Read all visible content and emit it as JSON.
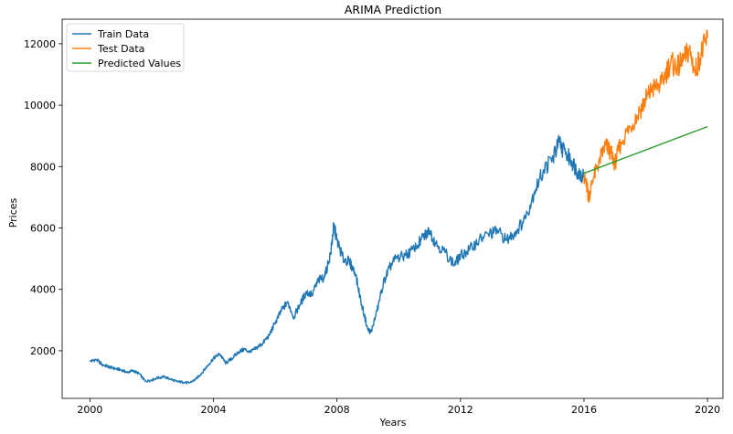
{
  "chart_data": {
    "type": "line",
    "title": "ARIMA Prediction",
    "xlabel": "Years",
    "ylabel": "Prices",
    "xlim": [
      1999.1,
      2020.5
    ],
    "ylim": [
      450,
      12800
    ],
    "x_ticks": [
      2000,
      2004,
      2008,
      2012,
      2016,
      2020
    ],
    "x_tick_labels": [
      "2000",
      "2004",
      "2008",
      "2012",
      "2016",
      "2020"
    ],
    "y_ticks": [
      2000,
      4000,
      6000,
      8000,
      10000,
      12000
    ],
    "y_tick_labels": [
      "2000",
      "4000",
      "6000",
      "8000",
      "10000",
      "12000"
    ],
    "grid": false,
    "legend_position": "upper-left",
    "colors": {
      "train": "#1f77b4",
      "test": "#ff7f0e",
      "predicted": "#2ca02c"
    },
    "series": [
      {
        "name": "Train Data",
        "key": "train",
        "points": [
          [
            2000.0,
            1650
          ],
          [
            2000.2,
            1720
          ],
          [
            2000.4,
            1550
          ],
          [
            2000.6,
            1480
          ],
          [
            2000.8,
            1420
          ],
          [
            2001.0,
            1380
          ],
          [
            2001.2,
            1300
          ],
          [
            2001.4,
            1350
          ],
          [
            2001.6,
            1250
          ],
          [
            2001.8,
            1000
          ],
          [
            2002.0,
            1050
          ],
          [
            2002.2,
            1120
          ],
          [
            2002.4,
            1150
          ],
          [
            2002.6,
            1080
          ],
          [
            2002.8,
            1000
          ],
          [
            2003.0,
            980
          ],
          [
            2003.2,
            950
          ],
          [
            2003.4,
            1050
          ],
          [
            2003.6,
            1250
          ],
          [
            2003.8,
            1500
          ],
          [
            2004.0,
            1750
          ],
          [
            2004.2,
            1900
          ],
          [
            2004.4,
            1600
          ],
          [
            2004.6,
            1750
          ],
          [
            2004.8,
            1950
          ],
          [
            2005.0,
            2050
          ],
          [
            2005.2,
            1950
          ],
          [
            2005.4,
            2100
          ],
          [
            2005.6,
            2250
          ],
          [
            2005.8,
            2500
          ],
          [
            2006.0,
            2900
          ],
          [
            2006.2,
            3300
          ],
          [
            2006.4,
            3600
          ],
          [
            2006.6,
            3100
          ],
          [
            2006.8,
            3500
          ],
          [
            2007.0,
            3900
          ],
          [
            2007.2,
            3850
          ],
          [
            2007.4,
            4300
          ],
          [
            2007.6,
            4400
          ],
          [
            2007.8,
            5200
          ],
          [
            2007.9,
            6100
          ],
          [
            2008.0,
            5600
          ],
          [
            2008.2,
            5000
          ],
          [
            2008.4,
            4900
          ],
          [
            2008.6,
            4500
          ],
          [
            2008.8,
            3500
          ],
          [
            2009.0,
            2700
          ],
          [
            2009.1,
            2600
          ],
          [
            2009.3,
            3300
          ],
          [
            2009.5,
            4200
          ],
          [
            2009.7,
            4700
          ],
          [
            2009.9,
            5000
          ],
          [
            2010.2,
            5100
          ],
          [
            2010.5,
            5300
          ],
          [
            2010.8,
            5700
          ],
          [
            2011.0,
            5900
          ],
          [
            2011.2,
            5500
          ],
          [
            2011.5,
            5200
          ],
          [
            2011.8,
            4800
          ],
          [
            2012.0,
            5100
          ],
          [
            2012.3,
            5300
          ],
          [
            2012.6,
            5600
          ],
          [
            2012.9,
            5800
          ],
          [
            2013.2,
            5900
          ],
          [
            2013.5,
            5600
          ],
          [
            2013.8,
            5900
          ],
          [
            2014.1,
            6300
          ],
          [
            2014.4,
            7200
          ],
          [
            2014.7,
            7900
          ],
          [
            2015.0,
            8300
          ],
          [
            2015.2,
            8800
          ],
          [
            2015.4,
            8400
          ],
          [
            2015.6,
            8200
          ],
          [
            2015.8,
            7800
          ],
          [
            2016.0,
            7700
          ]
        ]
      },
      {
        "name": "Test Data",
        "key": "test",
        "points": [
          [
            2016.0,
            7700
          ],
          [
            2016.1,
            7300
          ],
          [
            2016.15,
            7000
          ],
          [
            2016.3,
            7600
          ],
          [
            2016.5,
            8200
          ],
          [
            2016.7,
            8700
          ],
          [
            2016.85,
            8500
          ],
          [
            2017.0,
            8100
          ],
          [
            2017.2,
            8800
          ],
          [
            2017.5,
            9300
          ],
          [
            2017.8,
            9800
          ],
          [
            2018.0,
            10200
          ],
          [
            2018.2,
            10500
          ],
          [
            2018.5,
            10700
          ],
          [
            2018.8,
            11400
          ],
          [
            2019.0,
            11200
          ],
          [
            2019.2,
            11400
          ],
          [
            2019.4,
            11800
          ],
          [
            2019.6,
            11100
          ],
          [
            2019.8,
            11700
          ],
          [
            2020.0,
            12200
          ]
        ]
      },
      {
        "name": "Predicted Values",
        "key": "predicted",
        "points": [
          [
            2016.0,
            7780
          ],
          [
            2020.0,
            9300
          ]
        ]
      }
    ]
  }
}
